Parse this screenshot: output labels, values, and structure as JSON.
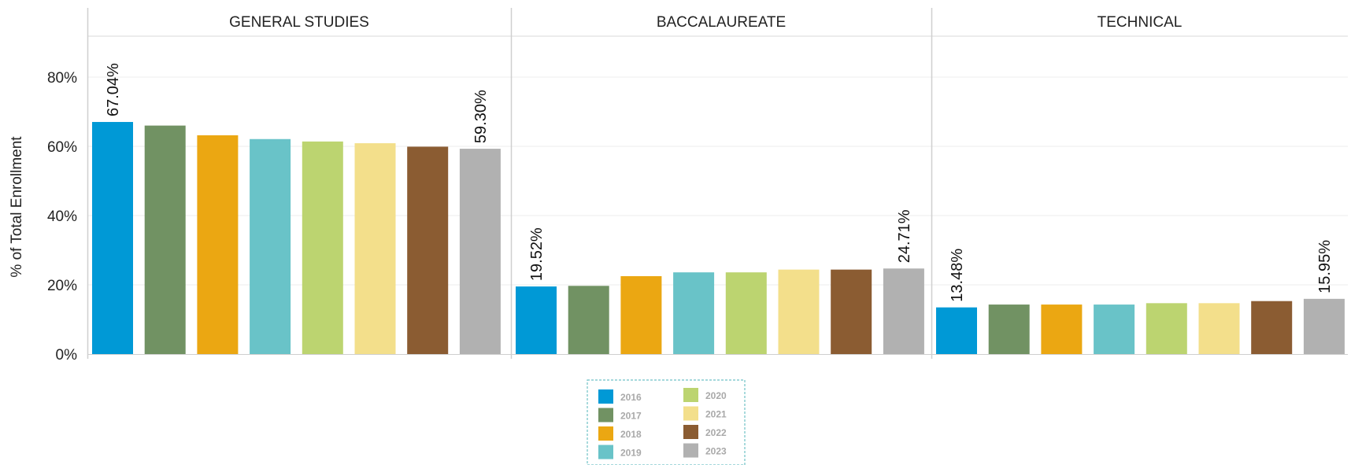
{
  "chart_data": {
    "type": "bar",
    "ylabel": "% of Total Enrollment",
    "yticks": [
      "0%",
      "20%",
      "40%",
      "60%",
      "80%"
    ],
    "ytick_values": [
      0,
      20,
      40,
      60,
      80
    ],
    "ylim": [
      0,
      92
    ],
    "grid": true,
    "legend_position": "bottom-center",
    "series": [
      {
        "name": "2016",
        "color": "#0099d6"
      },
      {
        "name": "2017",
        "color": "#719263"
      },
      {
        "name": "2018",
        "color": "#eba712"
      },
      {
        "name": "2019",
        "color": "#69c3c8"
      },
      {
        "name": "2020",
        "color": "#bcd470"
      },
      {
        "name": "2021",
        "color": "#f3df8b"
      },
      {
        "name": "2022",
        "color": "#8b5c32"
      },
      {
        "name": "2023",
        "color": "#b1b1b1"
      }
    ],
    "panels": [
      {
        "title": "GENERAL STUDIES",
        "values": [
          67.04,
          66.0,
          63.2,
          62.1,
          61.4,
          60.9,
          59.9,
          59.3
        ],
        "data_labels": [
          {
            "index": 0,
            "text": "67.04%"
          },
          {
            "index": 7,
            "text": "59.30%"
          }
        ]
      },
      {
        "title": "BACCALAUREATE",
        "values": [
          19.52,
          19.7,
          22.5,
          23.6,
          23.6,
          24.4,
          24.4,
          24.71
        ],
        "data_labels": [
          {
            "index": 0,
            "text": "19.52%"
          },
          {
            "index": 7,
            "text": "24.71%"
          }
        ]
      },
      {
        "title": "TECHNICAL",
        "values": [
          13.48,
          14.3,
          14.3,
          14.3,
          14.7,
          14.7,
          15.3,
          15.95
        ],
        "data_labels": [
          {
            "index": 0,
            "text": "13.48%"
          },
          {
            "index": 7,
            "text": "15.95%"
          }
        ]
      }
    ]
  }
}
